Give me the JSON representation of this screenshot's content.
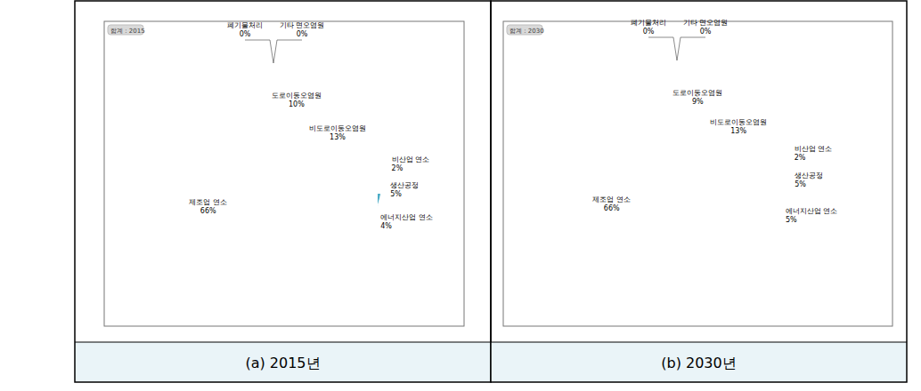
{
  "chart_data": [
    {
      "type": "pie",
      "title": "합계 : 2015",
      "caption": "(a) 2015년",
      "categories": [
        "폐기물처리",
        "기타 면오염원",
        "도로이동오염원",
        "비도로이동오염원",
        "비산업 연소",
        "생산공정",
        "에너지산업 연소",
        "제조업 연소"
      ],
      "values": [
        0,
        0,
        10,
        13,
        2,
        5,
        4,
        66
      ],
      "value_labels": [
        "0%",
        "0%",
        "10%",
        "13%",
        "2%",
        "5%",
        "4%",
        "66%"
      ],
      "colors": [
        "#4f81bd",
        "#2c4d75",
        "#c0504d",
        "#9bbb59",
        "#8064a2",
        "#4bacc6",
        "#f79646",
        "#95b3d7"
      ],
      "data_labels": true
    },
    {
      "type": "pie",
      "title": "합계 : 2030",
      "caption": "(b) 2030년",
      "categories": [
        "폐기물처리",
        "기타 면오염원",
        "도로이동오염원",
        "비도로이동오염원",
        "비산업 연소",
        "생산공정",
        "에너지산업 연소",
        "제조업 연소"
      ],
      "values": [
        0,
        0,
        9,
        13,
        2,
        5,
        5,
        66
      ],
      "value_labels": [
        "0%",
        "0%",
        "9%",
        "13%",
        "2%",
        "5%",
        "5%",
        "66%"
      ],
      "colors": [
        "#4f81bd",
        "#2c4d75",
        "#c0504d",
        "#9bbb59",
        "#8064a2",
        "#4bacc6",
        "#f79646",
        "#95b3d7"
      ],
      "data_labels": true
    }
  ]
}
